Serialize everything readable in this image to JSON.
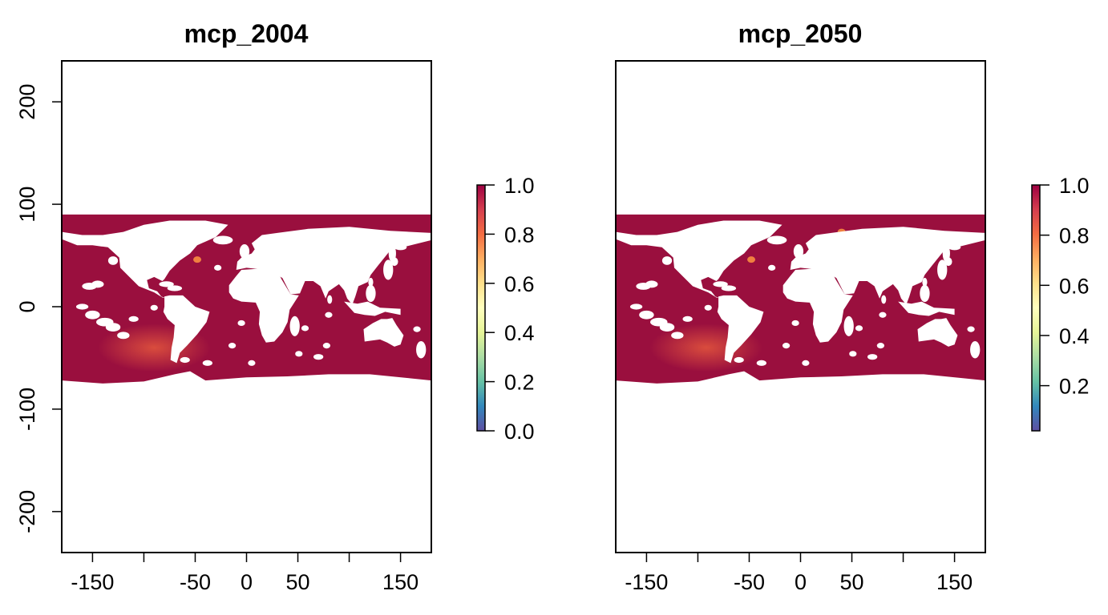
{
  "chart_data": [
    {
      "type": "heatmap",
      "title": "mcp_2004",
      "xlabel": "",
      "ylabel": "",
      "xlim": [
        -180,
        180
      ],
      "ylim": [
        -240,
        240
      ],
      "x_ticks": [
        -200,
        -150,
        -100,
        -50,
        0,
        50,
        100,
        150
      ],
      "x_tick_labels": [
        "",
        "-150",
        "",
        "-50",
        "0",
        "50",
        "",
        "150"
      ],
      "y_ticks": [
        -200,
        -100,
        0,
        100,
        200
      ],
      "y_tick_labels": [
        "-200",
        "-100",
        "0",
        "100",
        "200"
      ],
      "raster_extent": {
        "lon": [
          -180,
          180
        ],
        "lat": [
          -78,
          90
        ]
      },
      "ocean_value": 1.0,
      "hotspots": [
        {
          "lon": -90,
          "lat": -40,
          "value": 0.85
        },
        {
          "lon": -48,
          "lat": 46,
          "value": 0.6
        }
      ],
      "legend": {
        "ticks": [
          0.0,
          0.2,
          0.4,
          0.6,
          0.8,
          1.0
        ],
        "tick_labels": [
          "0.0",
          "0.2",
          "0.4",
          "0.6",
          "0.8",
          "1.0"
        ],
        "range": [
          0,
          1
        ]
      }
    },
    {
      "type": "heatmap",
      "title": "mcp_2050",
      "xlabel": "",
      "ylabel": "",
      "xlim": [
        -180,
        180
      ],
      "ylim": [
        -240,
        240
      ],
      "x_ticks": [
        -200,
        -150,
        -100,
        -50,
        0,
        50,
        100,
        150
      ],
      "x_tick_labels": [
        "",
        "-150",
        "",
        "-50",
        "0",
        "50",
        "",
        "150"
      ],
      "y_ticks": [],
      "y_tick_labels": [],
      "raster_extent": {
        "lon": [
          -180,
          180
        ],
        "lat": [
          -78,
          90
        ]
      },
      "ocean_value": 1.0,
      "hotspots": [
        {
          "lon": -92,
          "lat": -40,
          "value": 0.85
        },
        {
          "lon": -48,
          "lat": 46,
          "value": 0.7
        },
        {
          "lon": 40,
          "lat": 73,
          "value": 0.75
        }
      ],
      "legend": {
        "ticks": [
          0.2,
          0.4,
          0.6,
          0.8,
          1.0
        ],
        "tick_labels": [
          "0.2",
          "0.4",
          "0.6",
          "0.8",
          "1.0"
        ],
        "range": [
          0.02,
          1
        ]
      }
    }
  ],
  "colors": {
    "ocean": "#9a0f3e",
    "hotspot": "#e0533d",
    "land": "#ffffff",
    "spectral": [
      "#5e4fa2",
      "#3288bd",
      "#66c2a5",
      "#abdda4",
      "#e6f598",
      "#ffffbf",
      "#fee08b",
      "#fdae61",
      "#f46d43",
      "#d53e4f",
      "#9e0142"
    ]
  }
}
